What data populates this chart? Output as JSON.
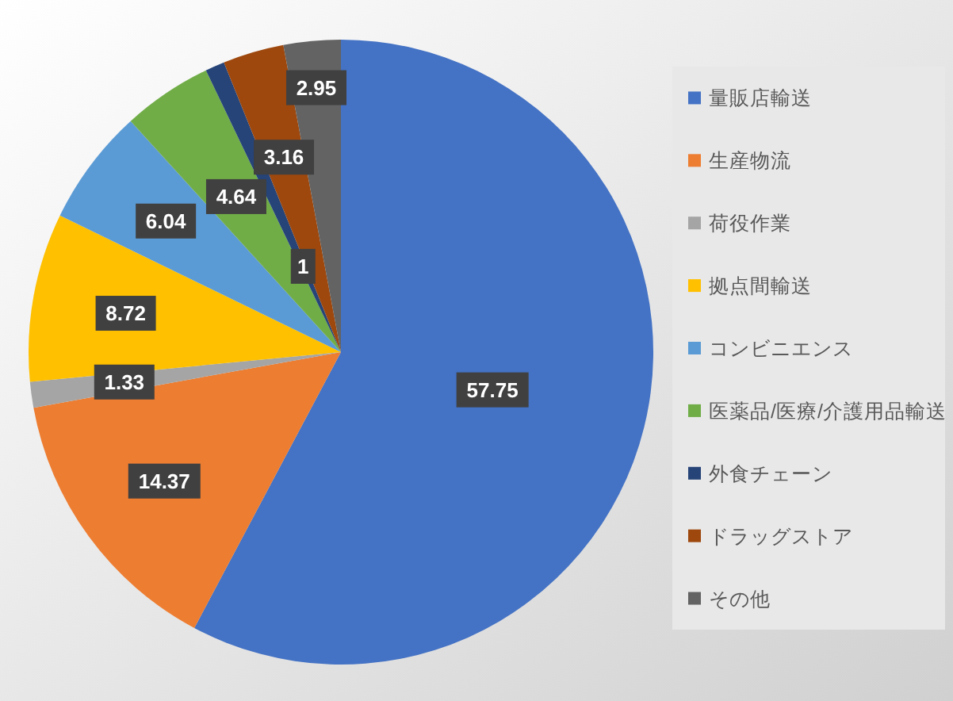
{
  "chart_data": {
    "type": "pie",
    "categories": [
      "量販店輸送",
      "生産物流",
      "荷役作業",
      "拠点間輸送",
      "コンビニエンス",
      "医薬品/医療/介護用品輸送",
      "外食チェーン",
      "ドラッグストア",
      "その他"
    ],
    "values": [
      57.75,
      14.37,
      1.33,
      8.72,
      6.04,
      4.64,
      1,
      3.16,
      2.95
    ],
    "colors": [
      "#4472c4",
      "#ed7d31",
      "#a5a5a5",
      "#ffc000",
      "#5b9bd5",
      "#70ad47",
      "#264478",
      "#9e480e",
      "#636363"
    ],
    "data_labels": true,
    "legend": "right"
  }
}
